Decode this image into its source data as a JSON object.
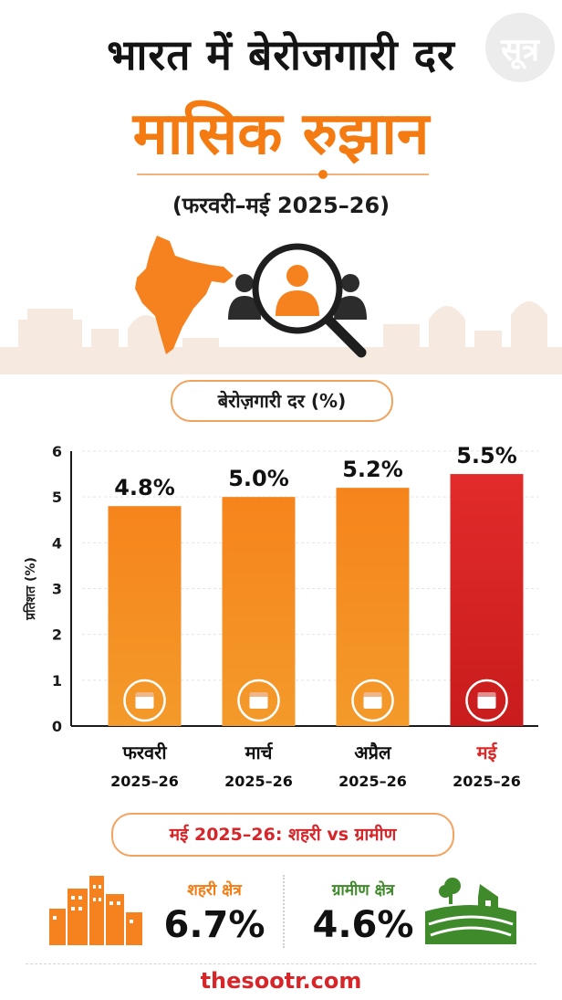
{
  "header": {
    "title_line1": "भारत में बेरोजगारी दर",
    "title_line2": "मासिक रुझान",
    "period": "(फरवरी–मई 2025–26)"
  },
  "logo": {
    "text": "सूत्र"
  },
  "chart_title": "बेरोज़गारी दर (%)",
  "chart_data": {
    "type": "bar",
    "categories": [
      "फरवरी",
      "मार्च",
      "अप्रैल",
      "मई"
    ],
    "sub_labels": [
      "2025–26",
      "2025–26",
      "2025–26",
      "2025–26"
    ],
    "values": [
      4.8,
      5.0,
      5.2,
      5.5
    ],
    "data_labels": [
      "4.8%",
      "5.0%",
      "5.2%",
      "5.5%"
    ],
    "ylabel": "प्रतिशत (%)",
    "yticks": [
      0,
      1,
      2,
      3,
      4,
      5,
      6
    ],
    "ylim": [
      0,
      6
    ],
    "grid": true,
    "highlight_index": 3,
    "colors": {
      "bar": "#f47b12",
      "highlight": "#dd2727",
      "icon": "calendar-icon"
    }
  },
  "comparison": {
    "title": "मई 2025–26: शहरी vs ग्रामीण",
    "urban": {
      "label": "शहरी क्षेत्र",
      "value": "6.7%",
      "icon": "city-buildings-icon"
    },
    "rural": {
      "label": "ग्रामीण क्षेत्र",
      "value": "4.6%",
      "icon": "farm-house-icon"
    }
  },
  "footer": {
    "site": "thesootr.com"
  },
  "colors": {
    "accent": "#f47b12",
    "red": "#dd2727",
    "green": "#3f8a2b"
  }
}
